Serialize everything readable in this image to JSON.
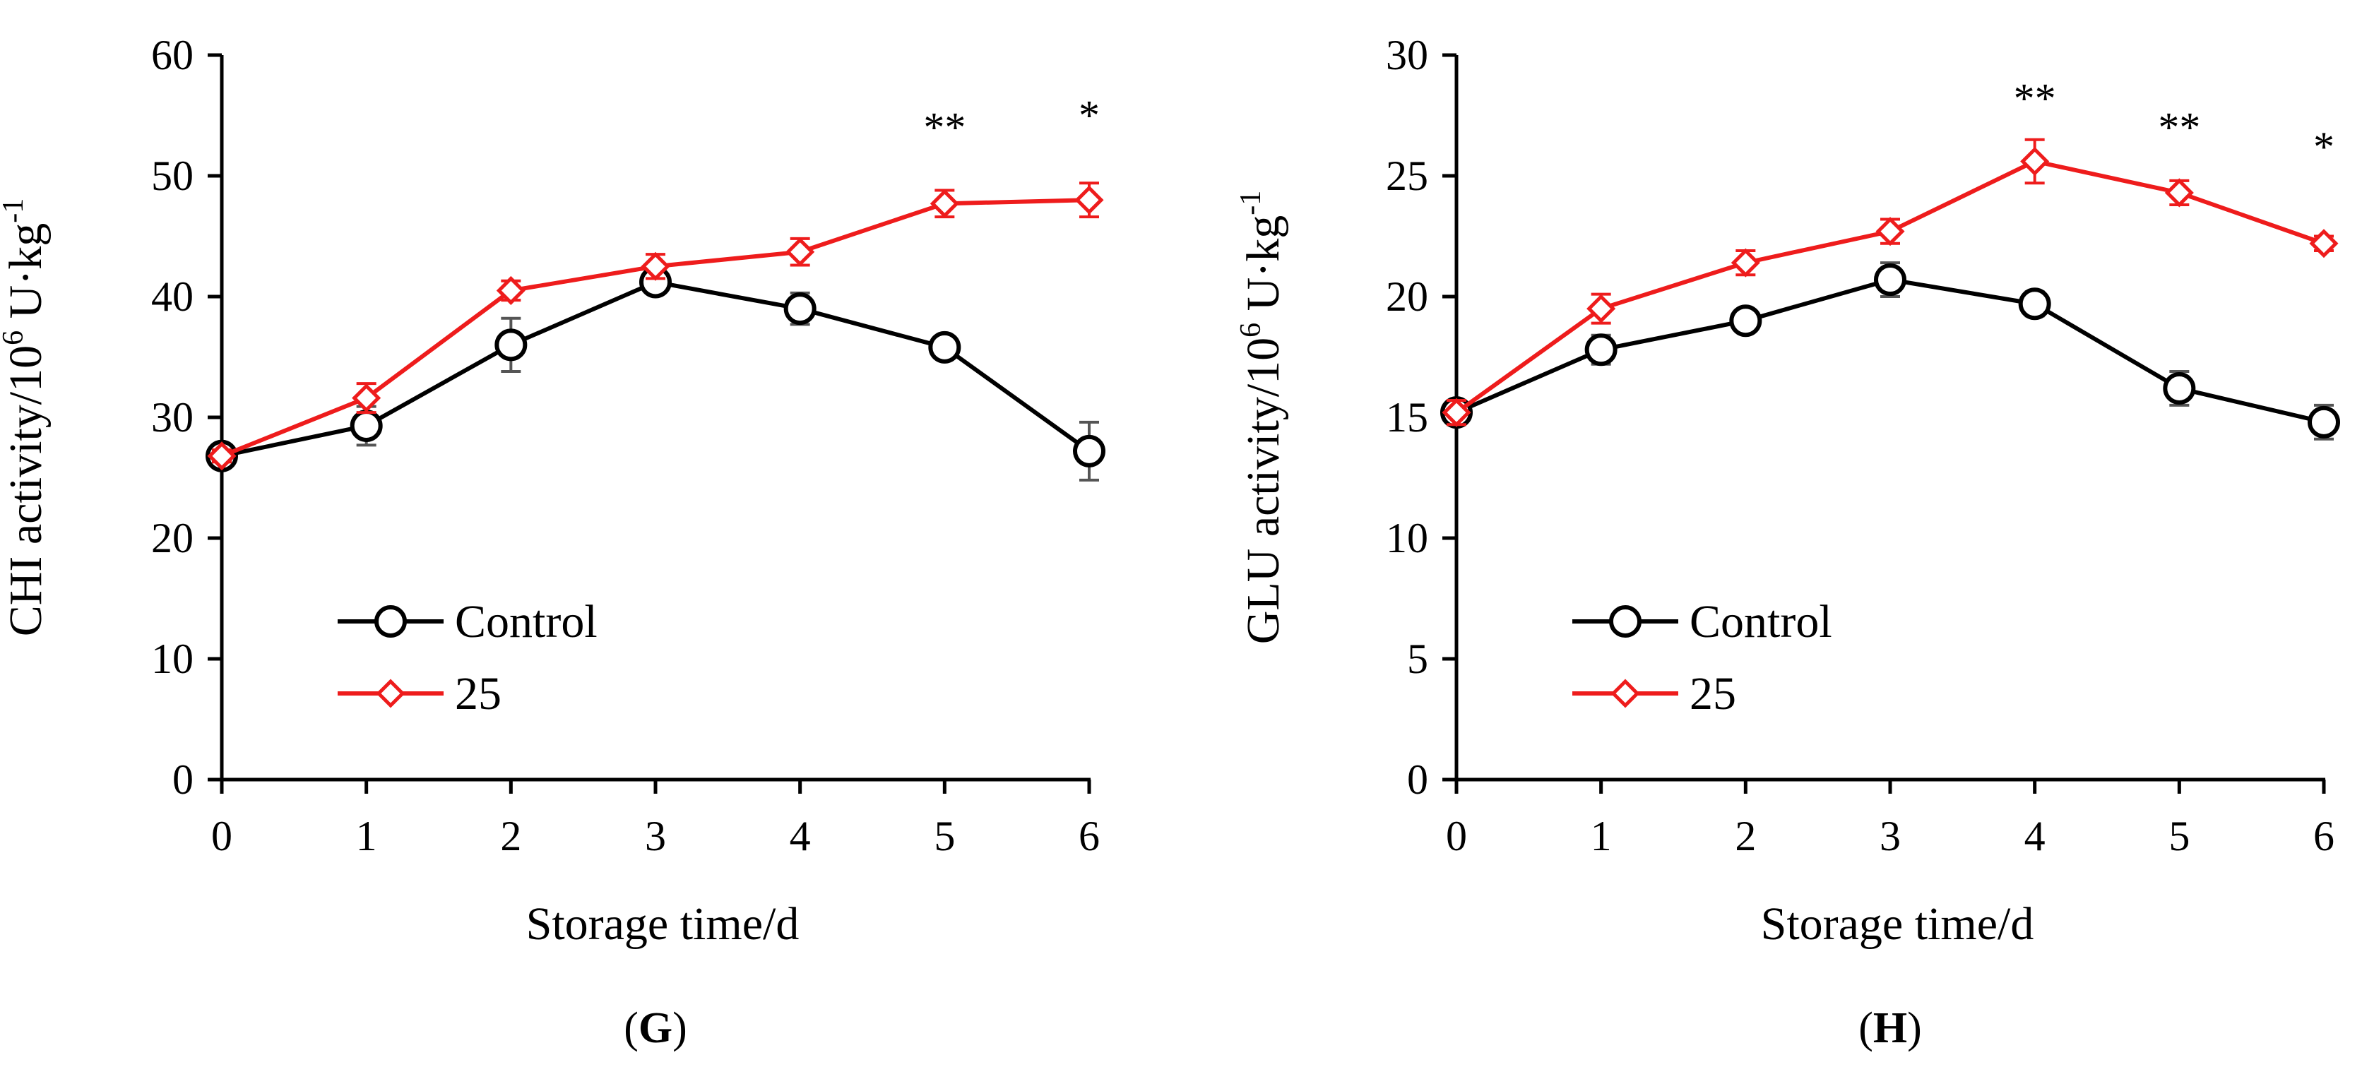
{
  "chart_data": [
    {
      "type": "line",
      "panel_label": "G",
      "ylabel_main": "CHI activity/10",
      "ylabel_sup1": "6",
      "ylabel_mid": " U·kg",
      "ylabel_sup2": "-1",
      "xlabel": "Storage time/d",
      "x": [
        0,
        1,
        2,
        3,
        4,
        5,
        6
      ],
      "xlim": [
        0,
        6
      ],
      "ylim": [
        0,
        60
      ],
      "yticks": [
        0,
        10,
        20,
        30,
        40,
        50,
        60
      ],
      "grid": false,
      "legend": "lower-left",
      "series": [
        {
          "name": "Control",
          "marker": "circle",
          "color": "#000000",
          "error_color": "#555555",
          "values": [
            26.8,
            29.3,
            36.0,
            41.2,
            39.0,
            35.8,
            27.2
          ],
          "errors": [
            0.5,
            1.6,
            2.2,
            0.8,
            1.3,
            0.6,
            2.4
          ]
        },
        {
          "name": "25",
          "marker": "diamond",
          "color": "#ee1c1c",
          "error_color": "#ee1c1c",
          "values": [
            26.8,
            31.6,
            40.5,
            42.5,
            43.7,
            47.7,
            48.0
          ],
          "errors": [
            0.5,
            1.2,
            0.8,
            1.0,
            1.1,
            1.1,
            1.4
          ]
        }
      ],
      "annotations": [
        {
          "x": 5,
          "y": 54,
          "text": "**"
        },
        {
          "x": 6,
          "y": 55,
          "text": "*"
        }
      ]
    },
    {
      "type": "line",
      "panel_label": "H",
      "ylabel_main": "GLU activity/10",
      "ylabel_sup1": "6",
      "ylabel_mid": " U·kg",
      "ylabel_sup2": "-1",
      "xlabel": "Storage time/d",
      "x": [
        0,
        1,
        2,
        3,
        4,
        5,
        6
      ],
      "xlim": [
        0,
        6
      ],
      "ylim": [
        0,
        30
      ],
      "yticks": [
        0,
        5,
        10,
        15,
        20,
        25,
        30
      ],
      "grid": false,
      "legend": "lower-left",
      "series": [
        {
          "name": "Control",
          "marker": "circle",
          "color": "#000000",
          "error_color": "#555555",
          "values": [
            15.2,
            17.8,
            19.0,
            20.7,
            19.7,
            16.2,
            14.8
          ],
          "errors": [
            0.5,
            0.6,
            0.4,
            0.7,
            0.5,
            0.7,
            0.7
          ]
        },
        {
          "name": "25",
          "marker": "diamond",
          "color": "#ee1c1c",
          "error_color": "#ee1c1c",
          "values": [
            15.2,
            19.5,
            21.4,
            22.7,
            25.6,
            24.3,
            22.2
          ],
          "errors": [
            0.5,
            0.6,
            0.5,
            0.5,
            0.9,
            0.5,
            0.3
          ]
        }
      ],
      "annotations": [
        {
          "x": 4,
          "y": 28.2,
          "text": "**"
        },
        {
          "x": 5,
          "y": 27.0,
          "text": "**"
        },
        {
          "x": 6,
          "y": 26.2,
          "text": "*"
        }
      ]
    }
  ]
}
